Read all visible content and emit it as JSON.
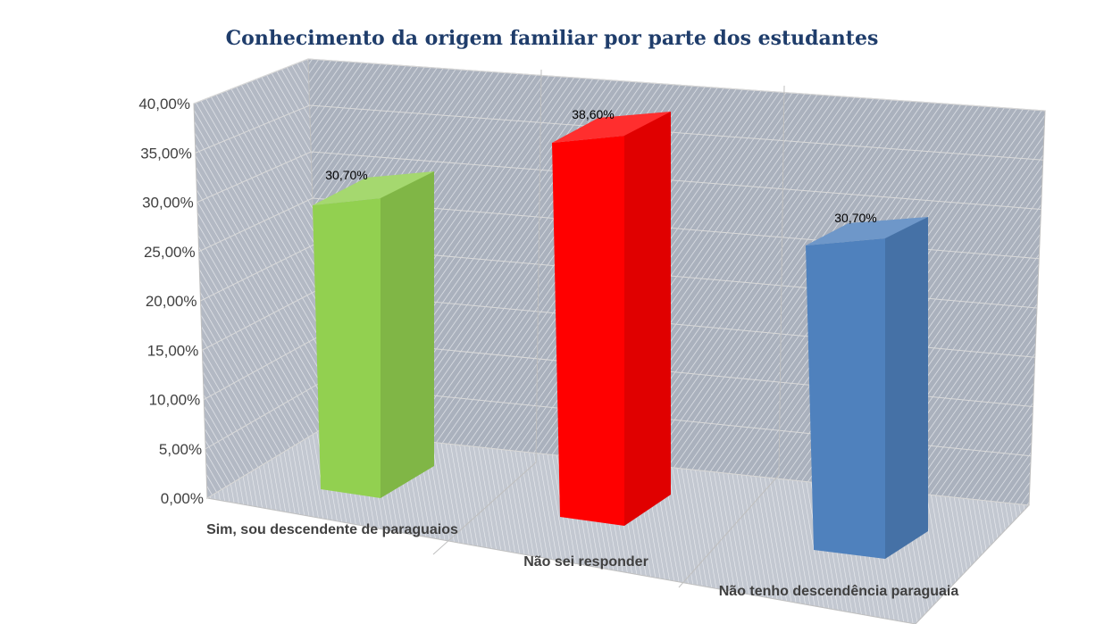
{
  "chart_data": {
    "type": "bar",
    "style": "3d-column",
    "title": "Conhecimento da origem familiar por parte dos estudantes",
    "categories": [
      "Sim, sou descendente de paraguaios",
      "Não sei responder",
      "Não tenho descendência paraguaia"
    ],
    "values": [
      30.7,
      38.6,
      30.7
    ],
    "data_labels": [
      "30,70%",
      "38,60%",
      "30,70%"
    ],
    "colors": [
      "#92d050",
      "#ff0000",
      "#4f81bd"
    ],
    "ylim": [
      0,
      40
    ],
    "y_ticks": [
      "0,00%",
      "5,00%",
      "10,00%",
      "15,00%",
      "20,00%",
      "25,00%",
      "30,00%",
      "35,00%",
      "40,00%"
    ],
    "xlabel": "",
    "ylabel": "",
    "grid": true,
    "legend": "none",
    "wall_color": "#a8afbb"
  }
}
